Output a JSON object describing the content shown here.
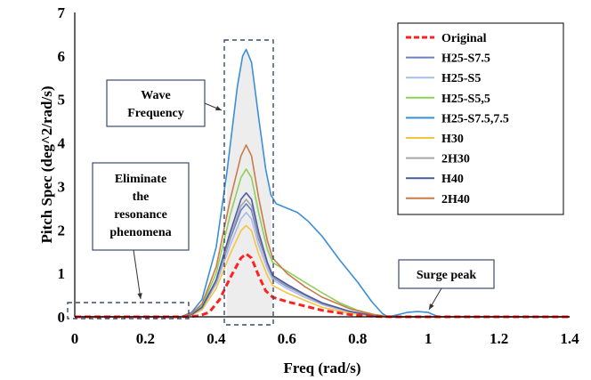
{
  "chart_data": {
    "type": "line",
    "title": "",
    "xlabel": "Freq (rad/s)",
    "ylabel": "Pitch Spec (deg^2/rad/s)",
    "xlim": [
      0,
      1.4
    ],
    "ylim": [
      0,
      7
    ],
    "xticks": [
      "0",
      "0.2",
      "0.4",
      "0.6",
      "0.8",
      "1",
      "1.2",
      "1.4"
    ],
    "yticks": [
      "0",
      "1",
      "2",
      "3",
      "4",
      "5",
      "6",
      "7"
    ],
    "grid": false,
    "legend_position": "top-right",
    "series": [
      {
        "name": "Original",
        "color": "#ff2020",
        "dashed": true,
        "points": [
          [
            0,
            0
          ],
          [
            0.3,
            0
          ],
          [
            0.35,
            0.02
          ],
          [
            0.38,
            0.1
          ],
          [
            0.41,
            0.4
          ],
          [
            0.44,
            0.9
          ],
          [
            0.47,
            1.35
          ],
          [
            0.485,
            1.45
          ],
          [
            0.5,
            1.35
          ],
          [
            0.52,
            0.95
          ],
          [
            0.54,
            0.6
          ],
          [
            0.56,
            0.45
          ],
          [
            0.6,
            0.35
          ],
          [
            0.65,
            0.25
          ],
          [
            0.7,
            0.15
          ],
          [
            0.78,
            0.05
          ],
          [
            0.85,
            0.01
          ],
          [
            0.9,
            0
          ],
          [
            1.4,
            0
          ]
        ]
      },
      {
        "name": "H25-S7.5",
        "color": "#6a7fc2",
        "points": [
          [
            0,
            0
          ],
          [
            0.3,
            0
          ],
          [
            0.33,
            0.05
          ],
          [
            0.36,
            0.2
          ],
          [
            0.4,
            0.8
          ],
          [
            0.44,
            1.8
          ],
          [
            0.47,
            2.45
          ],
          [
            0.485,
            2.6
          ],
          [
            0.5,
            2.45
          ],
          [
            0.52,
            1.8
          ],
          [
            0.545,
            1.2
          ],
          [
            0.56,
            0.9
          ],
          [
            0.6,
            0.7
          ],
          [
            0.65,
            0.5
          ],
          [
            0.7,
            0.3
          ],
          [
            0.78,
            0.12
          ],
          [
            0.85,
            0.02
          ],
          [
            0.9,
            0
          ],
          [
            1.4,
            0
          ]
        ]
      },
      {
        "name": "H25-S5",
        "color": "#a9bde6",
        "points": [
          [
            0,
            0
          ],
          [
            0.3,
            0
          ],
          [
            0.33,
            0.05
          ],
          [
            0.36,
            0.2
          ],
          [
            0.4,
            0.75
          ],
          [
            0.44,
            1.65
          ],
          [
            0.47,
            2.25
          ],
          [
            0.485,
            2.4
          ],
          [
            0.5,
            2.25
          ],
          [
            0.52,
            1.65
          ],
          [
            0.545,
            1.1
          ],
          [
            0.56,
            0.85
          ],
          [
            0.6,
            0.65
          ],
          [
            0.65,
            0.45
          ],
          [
            0.7,
            0.28
          ],
          [
            0.78,
            0.1
          ],
          [
            0.85,
            0.02
          ],
          [
            0.9,
            0
          ],
          [
            1.4,
            0
          ]
        ]
      },
      {
        "name": "H25-S5,5",
        "color": "#8fcf5a",
        "points": [
          [
            0,
            0
          ],
          [
            0.3,
            0
          ],
          [
            0.33,
            0.06
          ],
          [
            0.36,
            0.25
          ],
          [
            0.4,
            1.0
          ],
          [
            0.44,
            2.35
          ],
          [
            0.47,
            3.2
          ],
          [
            0.485,
            3.4
          ],
          [
            0.5,
            3.2
          ],
          [
            0.52,
            2.4
          ],
          [
            0.545,
            1.55
          ],
          [
            0.56,
            1.25
          ],
          [
            0.6,
            1.05
          ],
          [
            0.65,
            0.8
          ],
          [
            0.7,
            0.55
          ],
          [
            0.75,
            0.32
          ],
          [
            0.8,
            0.15
          ],
          [
            0.85,
            0.05
          ],
          [
            0.9,
            0
          ],
          [
            1.4,
            0
          ]
        ]
      },
      {
        "name": "H25-S7.5,7.5",
        "color": "#3b8fd6",
        "points": [
          [
            0,
            0
          ],
          [
            0.3,
            0
          ],
          [
            0.33,
            0.1
          ],
          [
            0.36,
            0.4
          ],
          [
            0.4,
            1.6
          ],
          [
            0.43,
            3.3
          ],
          [
            0.46,
            5.3
          ],
          [
            0.475,
            6.0
          ],
          [
            0.485,
            6.15
          ],
          [
            0.5,
            5.85
          ],
          [
            0.52,
            4.6
          ],
          [
            0.54,
            3.4
          ],
          [
            0.555,
            2.8
          ],
          [
            0.57,
            2.6
          ],
          [
            0.6,
            2.5
          ],
          [
            0.63,
            2.4
          ],
          [
            0.66,
            2.2
          ],
          [
            0.7,
            1.85
          ],
          [
            0.75,
            1.3
          ],
          [
            0.8,
            0.8
          ],
          [
            0.84,
            0.35
          ],
          [
            0.87,
            0.08
          ],
          [
            0.885,
            0
          ],
          [
            0.91,
            0.04
          ],
          [
            0.94,
            0.1
          ],
          [
            0.97,
            0.12
          ],
          [
            1.0,
            0.1
          ],
          [
            1.02,
            0.03
          ],
          [
            1.04,
            0
          ],
          [
            1.4,
            0
          ]
        ]
      },
      {
        "name": "H30",
        "color": "#f6c343",
        "points": [
          [
            0,
            0
          ],
          [
            0.3,
            0
          ],
          [
            0.33,
            0.04
          ],
          [
            0.36,
            0.16
          ],
          [
            0.4,
            0.65
          ],
          [
            0.44,
            1.45
          ],
          [
            0.47,
            1.98
          ],
          [
            0.485,
            2.1
          ],
          [
            0.5,
            1.98
          ],
          [
            0.52,
            1.45
          ],
          [
            0.545,
            0.95
          ],
          [
            0.56,
            0.72
          ],
          [
            0.6,
            0.55
          ],
          [
            0.65,
            0.38
          ],
          [
            0.7,
            0.22
          ],
          [
            0.78,
            0.08
          ],
          [
            0.85,
            0.01
          ],
          [
            0.9,
            0
          ],
          [
            1.4,
            0
          ]
        ]
      },
      {
        "name": "2H30",
        "color": "#a6a6a6",
        "points": [
          [
            0,
            0
          ],
          [
            0.3,
            0
          ],
          [
            0.33,
            0.05
          ],
          [
            0.36,
            0.2
          ],
          [
            0.4,
            0.8
          ],
          [
            0.44,
            1.85
          ],
          [
            0.47,
            2.55
          ],
          [
            0.485,
            2.7
          ],
          [
            0.5,
            2.55
          ],
          [
            0.52,
            1.85
          ],
          [
            0.545,
            1.2
          ],
          [
            0.56,
            0.92
          ],
          [
            0.6,
            0.72
          ],
          [
            0.65,
            0.5
          ],
          [
            0.7,
            0.3
          ],
          [
            0.78,
            0.12
          ],
          [
            0.85,
            0.02
          ],
          [
            0.9,
            0
          ],
          [
            1.4,
            0
          ]
        ]
      },
      {
        "name": "H40",
        "color": "#4a5aa8",
        "points": [
          [
            0,
            0
          ],
          [
            0.3,
            0
          ],
          [
            0.33,
            0.05
          ],
          [
            0.36,
            0.22
          ],
          [
            0.4,
            0.85
          ],
          [
            0.44,
            1.95
          ],
          [
            0.47,
            2.7
          ],
          [
            0.485,
            2.85
          ],
          [
            0.5,
            2.7
          ],
          [
            0.52,
            1.95
          ],
          [
            0.545,
            1.25
          ],
          [
            0.56,
            0.95
          ],
          [
            0.6,
            0.75
          ],
          [
            0.65,
            0.52
          ],
          [
            0.7,
            0.32
          ],
          [
            0.78,
            0.12
          ],
          [
            0.85,
            0.02
          ],
          [
            0.9,
            0
          ],
          [
            1.4,
            0
          ]
        ]
      },
      {
        "name": "2H40",
        "color": "#c97b4a",
        "points": [
          [
            0,
            0
          ],
          [
            0.3,
            0
          ],
          [
            0.33,
            0.07
          ],
          [
            0.36,
            0.3
          ],
          [
            0.4,
            1.15
          ],
          [
            0.44,
            2.7
          ],
          [
            0.47,
            3.7
          ],
          [
            0.485,
            3.95
          ],
          [
            0.5,
            3.7
          ],
          [
            0.52,
            2.75
          ],
          [
            0.545,
            1.75
          ],
          [
            0.56,
            1.35
          ],
          [
            0.6,
            1.0
          ],
          [
            0.65,
            0.7
          ],
          [
            0.7,
            0.45
          ],
          [
            0.78,
            0.18
          ],
          [
            0.85,
            0.04
          ],
          [
            0.9,
            0
          ],
          [
            1.4,
            0
          ]
        ]
      }
    ],
    "annotations": [
      {
        "lines": [
          "Wave",
          "Frequency"
        ]
      },
      {
        "lines": [
          "Eliminate",
          "the",
          "resonance",
          "phenomena"
        ]
      },
      {
        "lines": [
          "Surge peak"
        ]
      }
    ]
  }
}
